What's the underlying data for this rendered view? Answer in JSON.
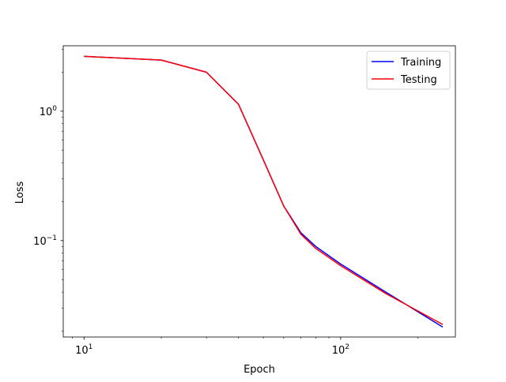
{
  "chart_data": {
    "type": "line",
    "title": "",
    "xlabel": "Epoch",
    "ylabel": "Loss",
    "x_scale": "log",
    "y_scale": "log",
    "xlim": [
      8.3,
      280
    ],
    "ylim": [
      0.018,
      3.2
    ],
    "x_tick_labels": [
      {
        "value": 10,
        "base": "10",
        "exp": "1"
      },
      {
        "value": 100,
        "base": "10",
        "exp": "2"
      }
    ],
    "y_tick_labels": [
      {
        "value": 0.1,
        "base": "10",
        "exp": "−1"
      },
      {
        "value": 1,
        "base": "10",
        "exp": "0"
      }
    ],
    "grid": false,
    "legend_position": "top-right",
    "x": [
      10,
      20,
      30,
      40,
      50,
      60,
      70,
      80,
      100,
      150,
      250
    ],
    "series": [
      {
        "name": "Training",
        "color": "#0000ff",
        "values": [
          2.65,
          2.48,
          2.0,
          1.13,
          0.42,
          0.185,
          0.115,
          0.09,
          0.066,
          0.04,
          0.0215
        ]
      },
      {
        "name": "Testing",
        "color": "#ff0000",
        "values": [
          2.65,
          2.48,
          2.0,
          1.13,
          0.42,
          0.185,
          0.112,
          0.087,
          0.064,
          0.039,
          0.0225
        ]
      }
    ]
  }
}
